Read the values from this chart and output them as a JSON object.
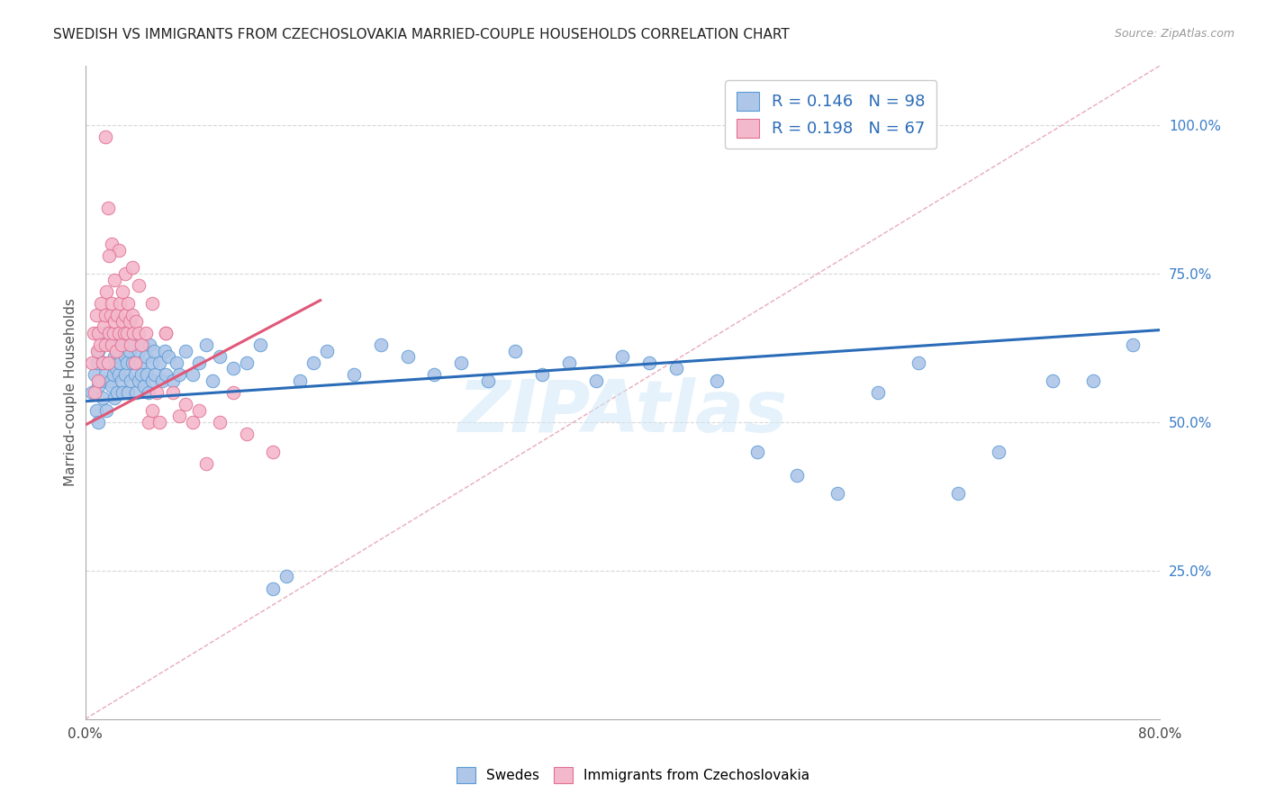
{
  "title": "SWEDISH VS IMMIGRANTS FROM CZECHOSLOVAKIA MARRIED-COUPLE HOUSEHOLDS CORRELATION CHART",
  "source": "Source: ZipAtlas.com",
  "ylabel": "Married-couple Households",
  "xlim": [
    0.0,
    0.8
  ],
  "ylim": [
    0.0,
    1.1
  ],
  "xticks": [
    0.0,
    0.1,
    0.2,
    0.3,
    0.4,
    0.5,
    0.6,
    0.7,
    0.8
  ],
  "xticklabels": [
    "0.0%",
    "",
    "",
    "",
    "",
    "",
    "",
    "",
    "80.0%"
  ],
  "yticks_right": [
    0.25,
    0.5,
    0.75,
    1.0
  ],
  "ytick_right_labels": [
    "25.0%",
    "50.0%",
    "75.0%",
    "100.0%"
  ],
  "legend_R_blue": "0.146",
  "legend_N_blue": "98",
  "legend_R_pink": "0.198",
  "legend_N_pink": "67",
  "blue_scatter_color": "#aec6e8",
  "blue_edge_color": "#5b9bd5",
  "pink_scatter_color": "#f4b8cc",
  "pink_edge_color": "#e07090",
  "blue_line_color": "#2b6cb8",
  "pink_line_color": "#e05878",
  "ref_line_color": "#e8aabb",
  "grid_color": "#d8d8d8",
  "watermark_color": "#d0e8f8",
  "watermark_alpha": 0.55,
  "blue_line_x": [
    0.0,
    0.8
  ],
  "blue_line_y": [
    0.535,
    0.655
  ],
  "pink_line_x": [
    0.0,
    0.175
  ],
  "pink_line_y": [
    0.495,
    0.705
  ],
  "ref_line_x": [
    0.0,
    0.8
  ],
  "ref_line_y": [
    0.0,
    1.1
  ],
  "swedes_x": [
    0.005,
    0.007,
    0.008,
    0.009,
    0.01,
    0.01,
    0.01,
    0.012,
    0.013,
    0.014,
    0.015,
    0.015,
    0.016,
    0.018,
    0.019,
    0.02,
    0.02,
    0.021,
    0.022,
    0.022,
    0.023,
    0.024,
    0.025,
    0.025,
    0.026,
    0.027,
    0.028,
    0.029,
    0.03,
    0.03,
    0.031,
    0.032,
    0.033,
    0.034,
    0.035,
    0.036,
    0.037,
    0.038,
    0.04,
    0.04,
    0.041,
    0.042,
    0.043,
    0.044,
    0.045,
    0.046,
    0.047,
    0.048,
    0.05,
    0.05,
    0.051,
    0.052,
    0.055,
    0.057,
    0.059,
    0.06,
    0.062,
    0.065,
    0.068,
    0.07,
    0.075,
    0.08,
    0.085,
    0.09,
    0.095,
    0.1,
    0.11,
    0.12,
    0.13,
    0.14,
    0.15,
    0.16,
    0.17,
    0.18,
    0.2,
    0.22,
    0.24,
    0.26,
    0.28,
    0.3,
    0.32,
    0.34,
    0.36,
    0.38,
    0.4,
    0.42,
    0.44,
    0.47,
    0.5,
    0.53,
    0.56,
    0.59,
    0.62,
    0.65,
    0.68,
    0.72,
    0.75,
    0.78
  ],
  "swedes_y": [
    0.55,
    0.58,
    0.52,
    0.6,
    0.56,
    0.5,
    0.62,
    0.57,
    0.54,
    0.6,
    0.58,
    0.65,
    0.52,
    0.6,
    0.57,
    0.63,
    0.56,
    0.58,
    0.54,
    0.61,
    0.59,
    0.55,
    0.62,
    0.58,
    0.6,
    0.57,
    0.55,
    0.63,
    0.61,
    0.58,
    0.6,
    0.55,
    0.62,
    0.57,
    0.6,
    0.63,
    0.58,
    0.55,
    0.62,
    0.57,
    0.6,
    0.58,
    0.63,
    0.56,
    0.61,
    0.58,
    0.55,
    0.63,
    0.6,
    0.57,
    0.62,
    0.58,
    0.6,
    0.57,
    0.62,
    0.58,
    0.61,
    0.57,
    0.6,
    0.58,
    0.62,
    0.58,
    0.6,
    0.63,
    0.57,
    0.61,
    0.59,
    0.6,
    0.63,
    0.22,
    0.24,
    0.57,
    0.6,
    0.62,
    0.58,
    0.63,
    0.61,
    0.58,
    0.6,
    0.57,
    0.62,
    0.58,
    0.6,
    0.57,
    0.61,
    0.6,
    0.59,
    0.57,
    0.45,
    0.41,
    0.38,
    0.55,
    0.6,
    0.38,
    0.45,
    0.57,
    0.57,
    0.63
  ],
  "czech_x": [
    0.005,
    0.006,
    0.007,
    0.008,
    0.009,
    0.01,
    0.01,
    0.011,
    0.012,
    0.013,
    0.014,
    0.015,
    0.015,
    0.016,
    0.017,
    0.018,
    0.019,
    0.02,
    0.02,
    0.021,
    0.022,
    0.023,
    0.024,
    0.025,
    0.026,
    0.027,
    0.028,
    0.029,
    0.03,
    0.031,
    0.032,
    0.033,
    0.034,
    0.035,
    0.036,
    0.037,
    0.038,
    0.04,
    0.042,
    0.045,
    0.047,
    0.05,
    0.053,
    0.055,
    0.06,
    0.065,
    0.07,
    0.075,
    0.08,
    0.085,
    0.09,
    0.1,
    0.11,
    0.12,
    0.14,
    0.015,
    0.017,
    0.02,
    0.025,
    0.03,
    0.018,
    0.022,
    0.028,
    0.035,
    0.04,
    0.05,
    0.06
  ],
  "czech_y": [
    0.6,
    0.65,
    0.55,
    0.68,
    0.62,
    0.57,
    0.65,
    0.63,
    0.7,
    0.6,
    0.66,
    0.68,
    0.63,
    0.72,
    0.6,
    0.65,
    0.68,
    0.7,
    0.63,
    0.65,
    0.67,
    0.62,
    0.68,
    0.65,
    0.7,
    0.63,
    0.67,
    0.65,
    0.68,
    0.65,
    0.7,
    0.67,
    0.63,
    0.68,
    0.65,
    0.6,
    0.67,
    0.65,
    0.63,
    0.65,
    0.5,
    0.52,
    0.55,
    0.5,
    0.65,
    0.55,
    0.51,
    0.53,
    0.5,
    0.52,
    0.43,
    0.5,
    0.55,
    0.48,
    0.45,
    0.98,
    0.86,
    0.8,
    0.79,
    0.75,
    0.78,
    0.74,
    0.72,
    0.76,
    0.73,
    0.7,
    0.65
  ]
}
